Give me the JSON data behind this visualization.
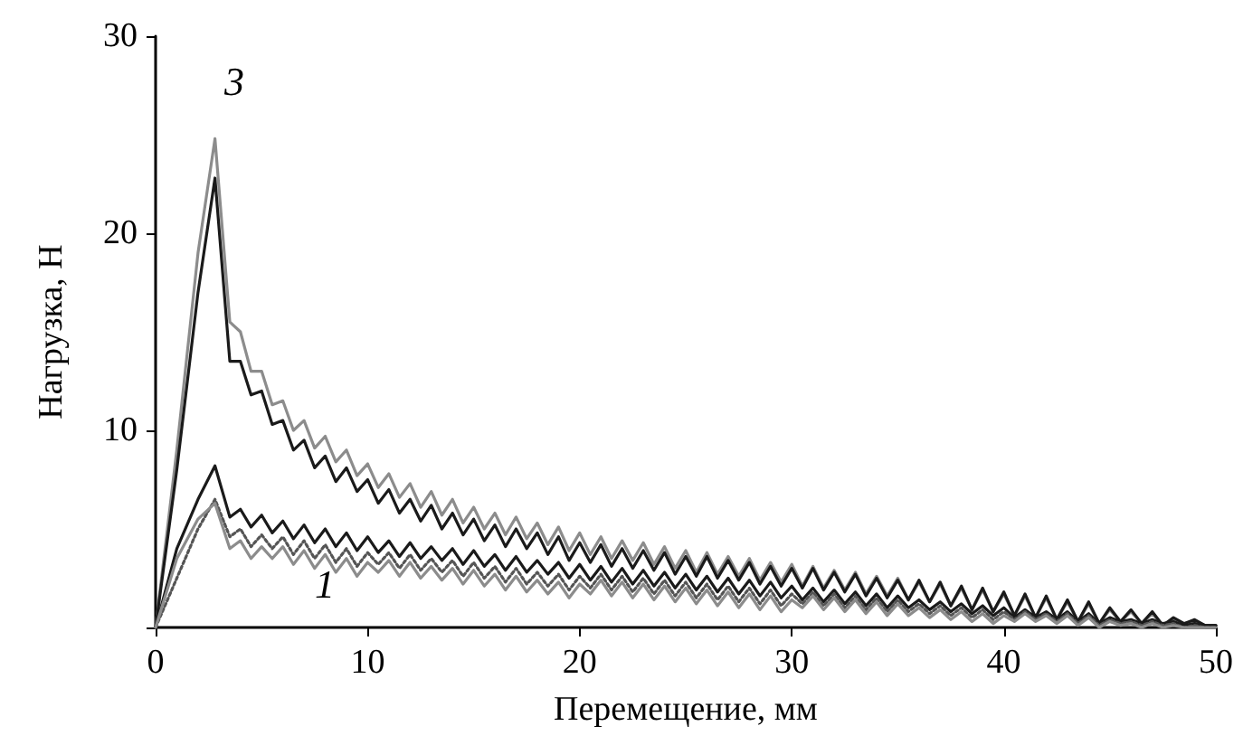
{
  "chart_data": {
    "type": "line",
    "xlabel": "Перемещение, мм",
    "ylabel": "Нагрузка, Н",
    "x": [
      0,
      1,
      2,
      2.8,
      3.5,
      4,
      4.5,
      5,
      5.5,
      6,
      6.5,
      7,
      7.5,
      8,
      8.5,
      9,
      9.5,
      10,
      10.5,
      11,
      11.5,
      12,
      12.5,
      13,
      13.5,
      14,
      14.5,
      15,
      15.5,
      16,
      16.5,
      17,
      17.5,
      18,
      18.5,
      19,
      19.5,
      20,
      20.5,
      21,
      21.5,
      22,
      22.5,
      23,
      23.5,
      24,
      24.5,
      25,
      25.5,
      26,
      26.5,
      27,
      27.5,
      28,
      28.5,
      29,
      29.5,
      30,
      30.5,
      31,
      31.5,
      32,
      32.5,
      33,
      33.5,
      34,
      34.5,
      35,
      35.5,
      36,
      36.5,
      37,
      37.5,
      38,
      38.5,
      39,
      39.5,
      40,
      40.5,
      41,
      41.5,
      42,
      42.5,
      43,
      43.5,
      44,
      44.5,
      45,
      45.5,
      46,
      46.5,
      47,
      47.5,
      48,
      48.5,
      49,
      49.5,
      50
    ],
    "series": [
      {
        "color": "#8c8c8c",
        "values": [
          0,
          9,
          19,
          24.8,
          15.5,
          15.0,
          13.0,
          13.0,
          11.3,
          11.5,
          10.0,
          10.5,
          9.1,
          9.7,
          8.4,
          9.0,
          7.7,
          8.3,
          7.1,
          7.8,
          6.6,
          7.3,
          6.1,
          6.9,
          5.7,
          6.5,
          5.3,
          6.1,
          5.0,
          5.8,
          4.7,
          5.6,
          4.5,
          5.3,
          4.2,
          5.1,
          3.9,
          4.8,
          3.7,
          4.6,
          3.5,
          4.4,
          3.4,
          4.3,
          3.2,
          4.1,
          3.0,
          3.9,
          2.8,
          3.8,
          2.7,
          3.6,
          2.6,
          3.5,
          2.4,
          3.3,
          2.3,
          3.2,
          2.1,
          3.1,
          2.0,
          2.9,
          1.9,
          2.8,
          1.7,
          2.6,
          1.6,
          2.5,
          1.4,
          2.3,
          1.3,
          2.2,
          1.1,
          2.0,
          0.9,
          1.9,
          0.8,
          1.7,
          0.6,
          1.6,
          0.5,
          1.5,
          0.4,
          1.3,
          0.3,
          1.2,
          0.2,
          0.9,
          0.3,
          0.8,
          0.2,
          0.7,
          0.1,
          0.4,
          0.2,
          0.3,
          0.1,
          0.1
        ]
      },
      {
        "color": "#1a1a1a",
        "values": [
          0,
          8,
          17,
          22.8,
          13.5,
          13.5,
          11.8,
          12.0,
          10.3,
          10.5,
          9.0,
          9.5,
          8.1,
          8.7,
          7.4,
          8.1,
          6.9,
          7.5,
          6.3,
          7.0,
          5.8,
          6.5,
          5.4,
          6.2,
          5.0,
          5.8,
          4.7,
          5.5,
          4.4,
          5.2,
          4.1,
          5.0,
          4.0,
          4.8,
          3.7,
          4.6,
          3.4,
          4.3,
          3.3,
          4.2,
          3.1,
          4.0,
          3.0,
          3.9,
          2.9,
          3.8,
          2.7,
          3.6,
          2.6,
          3.6,
          2.5,
          3.4,
          2.4,
          3.3,
          2.2,
          3.1,
          2.1,
          3.0,
          2.0,
          3.0,
          1.9,
          2.8,
          1.8,
          2.7,
          1.6,
          2.5,
          1.5,
          2.4,
          1.4,
          2.4,
          1.3,
          2.3,
          1.1,
          2.1,
          0.9,
          2.0,
          0.8,
          1.8,
          0.6,
          1.7,
          0.5,
          1.6,
          0.4,
          1.4,
          0.3,
          1.3,
          0.2,
          1.0,
          0.3,
          0.9,
          0.2,
          0.8,
          0.1,
          0.5,
          0.2,
          0.4,
          0.1,
          0.1
        ]
      },
      {
        "color": "#1a1a1a",
        "values": [
          0,
          4,
          6.5,
          8.2,
          5.6,
          6.0,
          5.1,
          5.7,
          4.8,
          5.4,
          4.5,
          5.2,
          4.3,
          5.0,
          4.1,
          4.8,
          3.9,
          4.6,
          3.8,
          4.4,
          3.6,
          4.3,
          3.5,
          4.1,
          3.4,
          4.0,
          3.2,
          3.9,
          3.1,
          3.7,
          2.9,
          3.6,
          2.8,
          3.4,
          2.7,
          3.3,
          2.5,
          3.2,
          2.4,
          3.1,
          2.3,
          3.0,
          2.2,
          2.9,
          2.1,
          2.8,
          2.0,
          2.7,
          1.9,
          2.6,
          1.8,
          2.5,
          1.7,
          2.4,
          1.6,
          2.3,
          1.5,
          2.1,
          1.4,
          2.0,
          1.3,
          1.9,
          1.2,
          1.8,
          1.1,
          1.7,
          1.0,
          1.6,
          1.0,
          1.4,
          0.9,
          1.3,
          0.8,
          1.2,
          0.7,
          1.1,
          0.6,
          1.0,
          0.5,
          0.9,
          0.5,
          0.8,
          0.4,
          0.8,
          0.3,
          0.7,
          0.2,
          0.5,
          0.3,
          0.4,
          0.2,
          0.4,
          0.2,
          0.3,
          0.1,
          0.2,
          0.1,
          0.1
        ]
      },
      {
        "color": "#555555",
        "line_style": "dotted",
        "values": [
          0,
          2.5,
          5,
          6.5,
          4.6,
          5.0,
          4.1,
          4.7,
          4.0,
          4.6,
          3.7,
          4.4,
          3.5,
          4.2,
          3.3,
          4.0,
          3.1,
          3.8,
          3.2,
          3.8,
          3.0,
          3.7,
          2.9,
          3.5,
          2.8,
          3.4,
          2.6,
          3.3,
          2.5,
          3.1,
          2.3,
          3.0,
          2.2,
          2.8,
          2.1,
          2.7,
          1.9,
          2.6,
          2.0,
          2.7,
          1.9,
          2.6,
          1.8,
          2.5,
          1.7,
          2.4,
          1.6,
          2.3,
          1.5,
          2.2,
          1.4,
          2.1,
          1.3,
          2.0,
          1.2,
          1.9,
          1.1,
          1.7,
          1.2,
          1.8,
          1.1,
          1.7,
          1.0,
          1.6,
          0.9,
          1.5,
          0.8,
          1.4,
          0.8,
          1.2,
          0.7,
          1.1,
          0.6,
          1.0,
          0.5,
          0.9,
          0.4,
          0.8,
          0.4,
          0.8,
          0.4,
          0.7,
          0.3,
          0.7,
          0.2,
          0.6,
          0.1,
          0.4,
          0.2,
          0.3,
          0.1,
          0.3,
          0.1,
          0.2,
          0.0,
          0.1,
          0.0,
          0.0
        ]
      },
      {
        "color": "#8c8c8c",
        "values": [
          0,
          3.5,
          5.5,
          6.3,
          4.0,
          4.4,
          3.5,
          4.1,
          3.5,
          4.1,
          3.2,
          3.9,
          3.0,
          3.7,
          2.8,
          3.5,
          2.6,
          3.3,
          2.8,
          3.4,
          2.6,
          3.3,
          2.5,
          3.1,
          2.4,
          3.0,
          2.2,
          2.9,
          2.1,
          2.7,
          1.9,
          2.6,
          1.8,
          2.4,
          1.7,
          2.3,
          1.5,
          2.2,
          1.7,
          2.4,
          1.6,
          2.3,
          1.5,
          2.2,
          1.4,
          2.1,
          1.3,
          2.0,
          1.2,
          1.9,
          1.1,
          1.8,
          1.0,
          1.7,
          0.9,
          1.6,
          0.8,
          1.4,
          1.0,
          1.6,
          0.9,
          1.5,
          0.8,
          1.4,
          0.7,
          1.3,
          0.6,
          1.2,
          0.6,
          1.0,
          0.5,
          0.9,
          0.4,
          0.8,
          0.3,
          0.7,
          0.2,
          0.6,
          0.3,
          0.7,
          0.3,
          0.6,
          0.2,
          0.6,
          0.1,
          0.5,
          0.0,
          0.3,
          0.1,
          0.2,
          0.0,
          0.2,
          0.0,
          0.1,
          0.0,
          0.0,
          0.0,
          0.0
        ]
      }
    ],
    "xlim": [
      0,
      50
    ],
    "xticks": [
      0,
      10,
      20,
      30,
      40,
      50
    ],
    "ylim": [
      0,
      30
    ],
    "yticks": [
      {
        "value": 0,
        "label": null
      },
      10,
      20,
      30
    ],
    "grid": false,
    "marker": "none",
    "line_style": "solid",
    "annotations": [
      "3",
      "1"
    ]
  }
}
